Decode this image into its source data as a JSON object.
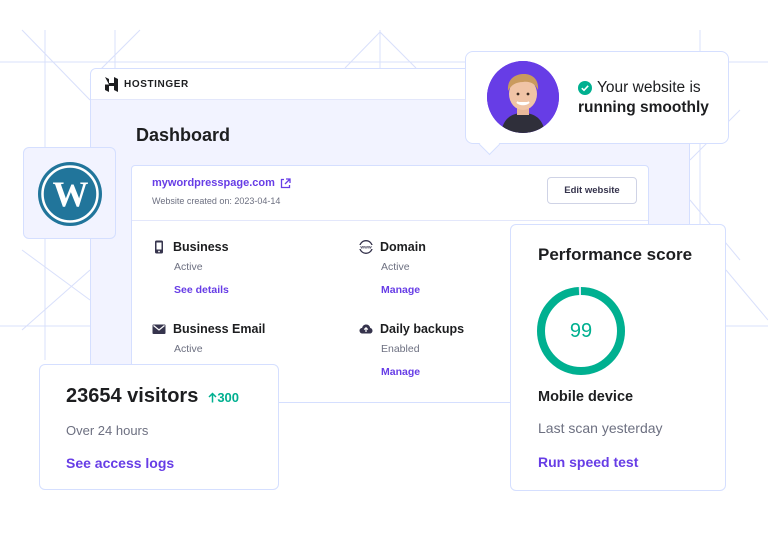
{
  "brand": {
    "name": "HOSTINGER",
    "accent": "#673de6",
    "success": "#00b090"
  },
  "dashboard": {
    "title": "Dashboard"
  },
  "website": {
    "domain": "mywordpresspage.com",
    "created": "Website created on: 2023-04-14",
    "edit_label": "Edit website"
  },
  "services": [
    {
      "icon": "phone-icon",
      "title": "Business",
      "status": "Active",
      "link": "See details"
    },
    {
      "icon": "www-icon",
      "title": "Domain",
      "status": "Active",
      "link": "Manage"
    },
    {
      "icon": "mail-icon",
      "title": "Business Email",
      "status": "Active",
      "link": ""
    },
    {
      "icon": "cloud-upload-icon",
      "title": "Daily backups",
      "status": "Enabled",
      "link": "Manage"
    }
  ],
  "status_card": {
    "line1": "Your website is",
    "line2": "running smoothly"
  },
  "visitors": {
    "count": "23654 visitors",
    "delta": "300",
    "period": "Over 24 hours",
    "link": "See access logs"
  },
  "performance": {
    "title": "Performance score",
    "score": "99",
    "score_value": 99,
    "device": "Mobile device",
    "last_scan": "Last scan yesterday",
    "link": "Run speed test"
  }
}
